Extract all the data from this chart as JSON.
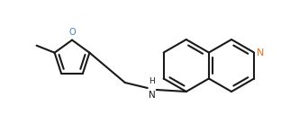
{
  "background_color": "#ffffff",
  "line_color": "#1a1a1a",
  "n_color": "#e07020",
  "o_color": "#4080c0",
  "lw": 1.5,
  "figsize": [
    3.22,
    1.47
  ],
  "dpi": 100,
  "xlim": [
    0,
    322
  ],
  "ylim": [
    0,
    147
  ]
}
